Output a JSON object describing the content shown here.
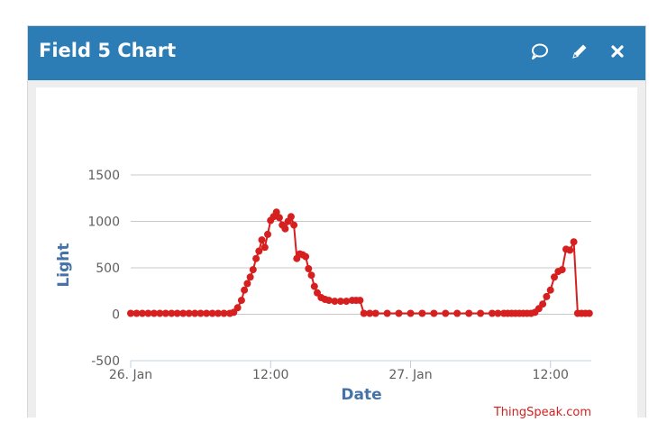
{
  "window": {
    "title": "Field 5 Chart",
    "icons": [
      "comment-icon",
      "pencil-icon",
      "close-icon"
    ]
  },
  "colors": {
    "header": "#2c7db6",
    "series": "#d62020",
    "axis_label": "#4572a7",
    "credit": "#d62020"
  },
  "chart_data": {
    "type": "line",
    "xlabel": "Date",
    "ylabel": "Light",
    "ylim": [
      -500,
      1500
    ],
    "yticks": [
      -500,
      0,
      500,
      1000,
      1500
    ],
    "xlim": [
      "2025-01-26T00:00",
      "2025-01-27T15:30"
    ],
    "xticks": [
      {
        "t": "2025-01-26T00:00",
        "label": "26. Jan"
      },
      {
        "t": "2025-01-26T12:00",
        "label": "12:00"
      },
      {
        "t": "2025-01-27T00:00",
        "label": "27. Jan"
      },
      {
        "t": "2025-01-27T12:00",
        "label": "12:00"
      }
    ],
    "grid": true,
    "legend": "none",
    "credit": "ThingSpeak.com",
    "series": [
      {
        "x": [
          "2025-01-26T00:00",
          "2025-01-26T00:30",
          "2025-01-26T01:00",
          "2025-01-26T01:30",
          "2025-01-26T02:00",
          "2025-01-26T02:30",
          "2025-01-26T03:00",
          "2025-01-26T03:30",
          "2025-01-26T04:00",
          "2025-01-26T04:30",
          "2025-01-26T05:00",
          "2025-01-26T05:30",
          "2025-01-26T06:00",
          "2025-01-26T06:30",
          "2025-01-26T07:00",
          "2025-01-26T07:30",
          "2025-01-26T08:00",
          "2025-01-26T08:30",
          "2025-01-26T08:50",
          "2025-01-26T09:10",
          "2025-01-26T09:30",
          "2025-01-26T09:45",
          "2025-01-26T10:00",
          "2025-01-26T10:15",
          "2025-01-26T10:30",
          "2025-01-26T10:45",
          "2025-01-26T11:00",
          "2025-01-26T11:15",
          "2025-01-26T11:30",
          "2025-01-26T11:45",
          "2025-01-26T12:00",
          "2025-01-26T12:15",
          "2025-01-26T12:30",
          "2025-01-26T12:45",
          "2025-01-26T13:00",
          "2025-01-26T13:15",
          "2025-01-26T13:30",
          "2025-01-26T13:45",
          "2025-01-26T14:00",
          "2025-01-26T14:15",
          "2025-01-26T14:30",
          "2025-01-26T14:45",
          "2025-01-26T15:00",
          "2025-01-26T15:15",
          "2025-01-26T15:30",
          "2025-01-26T15:45",
          "2025-01-26T16:00",
          "2025-01-26T16:20",
          "2025-01-26T16:40",
          "2025-01-26T17:00",
          "2025-01-26T17:30",
          "2025-01-26T18:00",
          "2025-01-26T18:30",
          "2025-01-26T19:00",
          "2025-01-26T19:20",
          "2025-01-26T19:40",
          "2025-01-26T20:00",
          "2025-01-26T20:30",
          "2025-01-26T21:00",
          "2025-01-26T22:00",
          "2025-01-26T23:00",
          "2025-01-27T00:00",
          "2025-01-27T01:00",
          "2025-01-27T02:00",
          "2025-01-27T03:00",
          "2025-01-27T04:00",
          "2025-01-27T05:00",
          "2025-01-27T06:00",
          "2025-01-27T07:00",
          "2025-01-27T07:30",
          "2025-01-27T08:00",
          "2025-01-27T08:20",
          "2025-01-27T08:40",
          "2025-01-27T09:00",
          "2025-01-27T09:20",
          "2025-01-27T09:40",
          "2025-01-27T10:00",
          "2025-01-27T10:20",
          "2025-01-27T10:40",
          "2025-01-27T11:00",
          "2025-01-27T11:20",
          "2025-01-27T11:40",
          "2025-01-27T12:00",
          "2025-01-27T12:20",
          "2025-01-27T12:40",
          "2025-01-27T13:00",
          "2025-01-27T13:20",
          "2025-01-27T13:40",
          "2025-01-27T14:00",
          "2025-01-27T14:20",
          "2025-01-27T14:40",
          "2025-01-27T15:00",
          "2025-01-27T15:20"
        ],
        "y": [
          10,
          10,
          10,
          10,
          10,
          10,
          10,
          10,
          10,
          10,
          10,
          10,
          10,
          10,
          10,
          10,
          10,
          10,
          20,
          70,
          150,
          260,
          330,
          400,
          480,
          600,
          680,
          800,
          720,
          860,
          1010,
          1050,
          1100,
          1040,
          960,
          920,
          1000,
          1050,
          960,
          600,
          650,
          640,
          620,
          490,
          420,
          300,
          230,
          180,
          160,
          150,
          140,
          140,
          140,
          150,
          150,
          150,
          10,
          10,
          10,
          10,
          10,
          10,
          10,
          10,
          10,
          10,
          10,
          10,
          10,
          10,
          10,
          10,
          10,
          10,
          10,
          10,
          10,
          10,
          20,
          60,
          110,
          190,
          260,
          400,
          460,
          480,
          700,
          690,
          780,
          10,
          10,
          10,
          10
        ]
      }
    ]
  }
}
